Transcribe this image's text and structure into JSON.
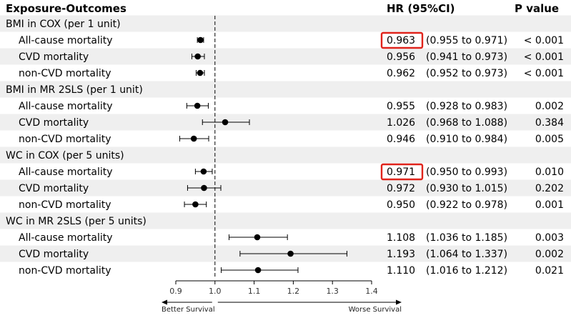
{
  "chart_data": {
    "type": "forest",
    "headers": {
      "outcome": "Exposure-Outcomes",
      "hr": "HR (95%CI)",
      "p": "P value"
    },
    "x_axis": {
      "ticks": [
        "0.9",
        "1.0",
        "1.1",
        "1.2",
        "1.3",
        "1.4"
      ],
      "xlim": [
        0.9,
        1.4
      ],
      "reference": 1.0
    },
    "annotations": {
      "left": "Better Survival",
      "right": "Worse Survival"
    },
    "colors": {
      "stripe": "#efefef",
      "highlight": "#e0231b",
      "marker": "#000000"
    },
    "groups": [
      {
        "label": "BMI in COX (per 1 unit)",
        "rows": [
          {
            "label": "All-cause mortality",
            "hr": 0.963,
            "lo": 0.955,
            "hi": 0.971,
            "hr_text": "0.963",
            "ci_text": "(0.955 to 0.971)",
            "p": "< 0.001",
            "highlight": true
          },
          {
            "label": "CVD mortality",
            "hr": 0.956,
            "lo": 0.941,
            "hi": 0.973,
            "hr_text": "0.956",
            "ci_text": "(0.941 to 0.973)",
            "p": "< 0.001"
          },
          {
            "label": "non-CVD mortality",
            "hr": 0.962,
            "lo": 0.952,
            "hi": 0.973,
            "hr_text": "0.962",
            "ci_text": "(0.952 to 0.973)",
            "p": "< 0.001"
          }
        ]
      },
      {
        "label": "BMI in MR 2SLS (per 1 unit)",
        "rows": [
          {
            "label": "All-cause mortality",
            "hr": 0.955,
            "lo": 0.928,
            "hi": 0.983,
            "hr_text": "0.955",
            "ci_text": "(0.928 to 0.983)",
            "p": "0.002"
          },
          {
            "label": "CVD mortality",
            "hr": 1.026,
            "lo": 0.968,
            "hi": 1.088,
            "hr_text": "1.026",
            "ci_text": "(0.968 to 1.088)",
            "p": "0.384"
          },
          {
            "label": "non-CVD mortality",
            "hr": 0.946,
            "lo": 0.91,
            "hi": 0.984,
            "hr_text": "0.946",
            "ci_text": "(0.910 to 0.984)",
            "p": "0.005"
          }
        ]
      },
      {
        "label": "WC in COX (per 5 units)",
        "rows": [
          {
            "label": "All-cause mortality",
            "hr": 0.971,
            "lo": 0.95,
            "hi": 0.993,
            "hr_text": "0.971",
            "ci_text": "(0.950 to 0.993)",
            "p": "0.010",
            "highlight": true
          },
          {
            "label": "CVD mortality",
            "hr": 0.972,
            "lo": 0.93,
            "hi": 1.015,
            "hr_text": "0.972",
            "ci_text": "(0.930 to 1.015)",
            "p": "0.202"
          },
          {
            "label": "non-CVD mortality",
            "hr": 0.95,
            "lo": 0.922,
            "hi": 0.978,
            "hr_text": "0.950",
            "ci_text": "(0.922 to 0.978)",
            "p": "0.001"
          }
        ]
      },
      {
        "label": "WC in MR 2SLS (per 5 units)",
        "rows": [
          {
            "label": "All-cause mortality",
            "hr": 1.108,
            "lo": 1.036,
            "hi": 1.185,
            "hr_text": "1.108",
            "ci_text": "(1.036 to 1.185)",
            "p": "0.003"
          },
          {
            "label": "CVD mortality",
            "hr": 1.193,
            "lo": 1.064,
            "hi": 1.337,
            "hr_text": "1.193",
            "ci_text": "(1.064 to 1.337)",
            "p": "0.002"
          },
          {
            "label": "non-CVD mortality",
            "hr": 1.11,
            "lo": 1.016,
            "hi": 1.212,
            "hr_text": "1.110",
            "ci_text": "(1.016 to 1.212)",
            "p": "0.021"
          }
        ]
      }
    ]
  }
}
